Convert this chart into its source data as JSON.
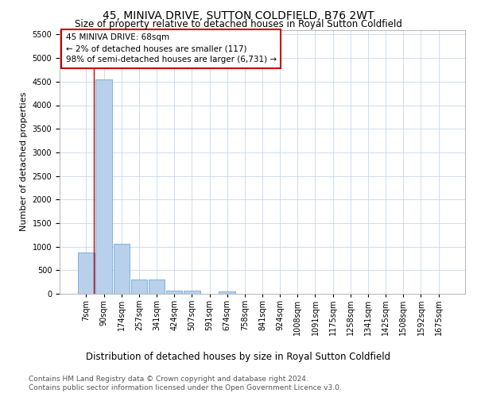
{
  "title": "45, MINIVA DRIVE, SUTTON COLDFIELD, B76 2WT",
  "subtitle": "Size of property relative to detached houses in Royal Sutton Coldfield",
  "xlabel": "Distribution of detached houses by size in Royal Sutton Coldfield",
  "ylabel": "Number of detached properties",
  "footer_line1": "Contains HM Land Registry data © Crown copyright and database right 2024.",
  "footer_line2": "Contains public sector information licensed under the Open Government Licence v3.0.",
  "annotation_line1": "45 MINIVA DRIVE: 68sqm",
  "annotation_line2": "← 2% of detached houses are smaller (117)",
  "annotation_line3": "98% of semi-detached houses are larger (6,731) →",
  "bar_labels": [
    "7sqm",
    "90sqm",
    "174sqm",
    "257sqm",
    "341sqm",
    "424sqm",
    "507sqm",
    "591sqm",
    "674sqm",
    "758sqm",
    "841sqm",
    "924sqm",
    "1008sqm",
    "1091sqm",
    "1175sqm",
    "1258sqm",
    "1341sqm",
    "1425sqm",
    "1508sqm",
    "1592sqm",
    "1675sqm"
  ],
  "bar_values": [
    880,
    4550,
    1060,
    310,
    310,
    65,
    65,
    0,
    50,
    0,
    0,
    0,
    0,
    0,
    0,
    0,
    0,
    0,
    0,
    0,
    0
  ],
  "bar_color": "#b8d0ea",
  "bar_edge_color": "#5a9fd4",
  "highlight_line_color": "#cc0000",
  "ylim": [
    0,
    5600
  ],
  "yticks": [
    0,
    500,
    1000,
    1500,
    2000,
    2500,
    3000,
    3500,
    4000,
    4500,
    5000,
    5500
  ],
  "annotation_box_color": "#ffffff",
  "annotation_box_edge": "#cc0000",
  "bg_color": "#ffffff",
  "grid_color": "#c8d8ea",
  "title_fontsize": 10,
  "subtitle_fontsize": 8.5,
  "ylabel_fontsize": 8,
  "xlabel_fontsize": 8.5,
  "tick_fontsize": 7,
  "annotation_fontsize": 7.5,
  "footer_fontsize": 6.5
}
